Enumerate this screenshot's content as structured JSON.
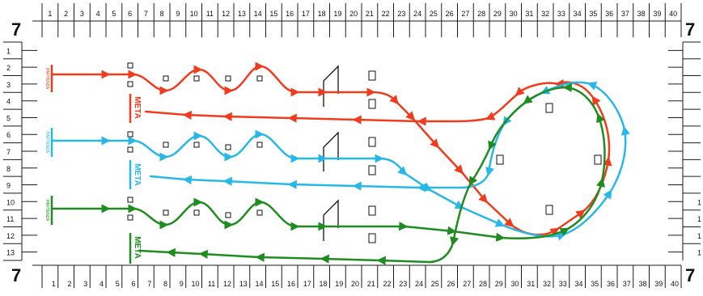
{
  "sheet": {
    "corner_label": "7",
    "columns": [
      "1",
      "2",
      "3",
      "4",
      "5",
      "6",
      "7",
      "8",
      "9",
      "10",
      "11",
      "12",
      "13",
      "14",
      "15",
      "16",
      "17",
      "18",
      "19",
      "20",
      "21",
      "22",
      "23",
      "24",
      "25",
      "26",
      "27",
      "28",
      "29",
      "30",
      "31",
      "32",
      "33",
      "34",
      "35",
      "36",
      "37",
      "38",
      "39",
      "40"
    ],
    "rows": [
      "1",
      "2",
      "3",
      "4",
      "5",
      "6",
      "7",
      "8",
      "9",
      "10",
      "11",
      "12",
      "13"
    ],
    "right_row_labels": [
      "1",
      "1",
      "1",
      "1"
    ]
  },
  "lanes": [
    {
      "name": "red",
      "color": "#f03c1e",
      "start_label": "PARTENZA",
      "finish_label": "META"
    },
    {
      "name": "cyan",
      "color": "#28b8e8",
      "start_label": "PARTENZA",
      "finish_label": "META"
    },
    {
      "name": "green",
      "color": "#1e8c1e",
      "start_label": "PARTENZA",
      "finish_label": "META"
    }
  ],
  "colors": {
    "grid": "#1a1a1a",
    "background": "#ffffff"
  }
}
